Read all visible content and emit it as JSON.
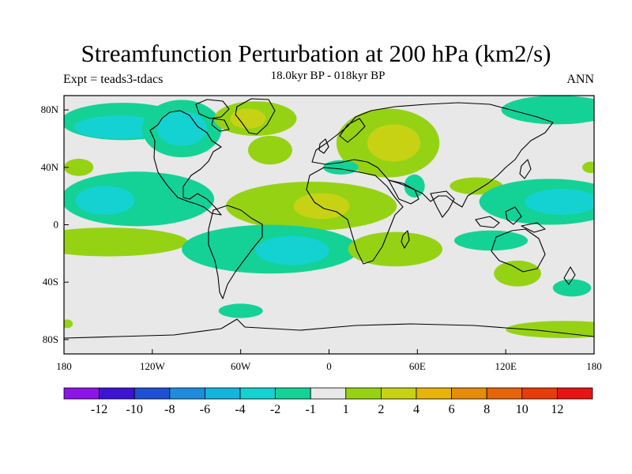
{
  "title": "Streamfunction Perturbation at 200 hPa (km2/s)",
  "experiment": "Expt = teads3-tdacs",
  "period": "18.0kyr BP - 018kyr BP",
  "season": "ANN",
  "map": {
    "projection": "cylindrical-equidistant",
    "lon_range": [
      -180,
      180
    ],
    "lat_range": [
      -90,
      90
    ],
    "x_ticks": [
      {
        "lon": -180,
        "label": "180"
      },
      {
        "lon": -120,
        "label": "120W"
      },
      {
        "lon": -60,
        "label": "60W"
      },
      {
        "lon": 0,
        "label": "0"
      },
      {
        "lon": 60,
        "label": "60E"
      },
      {
        "lon": 120,
        "label": "120E"
      },
      {
        "lon": 180,
        "label": "180"
      }
    ],
    "y_ticks": [
      {
        "lat": 80,
        "label": "80N"
      },
      {
        "lat": 40,
        "label": "40N"
      },
      {
        "lat": 0,
        "label": "0"
      },
      {
        "lat": -40,
        "label": "40S"
      },
      {
        "lat": -80,
        "label": "80S"
      }
    ],
    "background_color": "#e8e8e8"
  },
  "colorbar": {
    "colors": [
      "#8c14e6",
      "#3c14d2",
      "#1e50d2",
      "#1e8cdc",
      "#14b4dc",
      "#14d2d2",
      "#14d296",
      "#e8e8e8",
      "#96d214",
      "#c8d214",
      "#e6b40a",
      "#e68c0a",
      "#e6640a",
      "#e63c0a",
      "#e61414"
    ],
    "labels": [
      "-12",
      "-10",
      "-8",
      "-6",
      "-4",
      "-2",
      "-1",
      "1",
      "2",
      "4",
      "6",
      "8",
      "10",
      "12"
    ]
  },
  "regions": [
    {
      "lon": -140,
      "lat": 72,
      "rx": 42,
      "ry": 13,
      "level": "-1"
    },
    {
      "lon": -143,
      "lat": 68,
      "rx": 30,
      "ry": 8,
      "level": "-2"
    },
    {
      "lon": -100,
      "lat": 67,
      "rx": 27,
      "ry": 20,
      "level": "-1"
    },
    {
      "lon": -100,
      "lat": 67,
      "rx": 17,
      "ry": 12,
      "level": "-2"
    },
    {
      "lon": -130,
      "lat": 18,
      "rx": 52,
      "ry": 19,
      "level": "-1"
    },
    {
      "lon": -152,
      "lat": 17,
      "rx": 20,
      "ry": 10,
      "level": "-2"
    },
    {
      "lon": -170,
      "lat": 40,
      "rx": 10,
      "ry": 6,
      "level": "1"
    },
    {
      "lon": -150,
      "lat": -12,
      "rx": 54,
      "ry": 10,
      "level": "1"
    },
    {
      "lon": -50,
      "lat": 74,
      "rx": 28,
      "ry": 12,
      "level": "1"
    },
    {
      "lon": -55,
      "lat": 74,
      "rx": 12,
      "ry": 7,
      "level": "2"
    },
    {
      "lon": -40,
      "lat": 52,
      "rx": 15,
      "ry": 10,
      "level": "1"
    },
    {
      "lon": -12,
      "lat": 13,
      "rx": 58,
      "ry": 17,
      "level": "1"
    },
    {
      "lon": -5,
      "lat": 13,
      "rx": 19,
      "ry": 9,
      "level": "2"
    },
    {
      "lon": -40,
      "lat": -17,
      "rx": 60,
      "ry": 17,
      "level": "-1"
    },
    {
      "lon": -25,
      "lat": -18,
      "rx": 25,
      "ry": 10,
      "level": "-2"
    },
    {
      "lon": 45,
      "lat": -17,
      "rx": 32,
      "ry": 12,
      "level": "1"
    },
    {
      "lon": -60,
      "lat": -60,
      "rx": 15,
      "ry": 5,
      "level": "-1"
    },
    {
      "lon": 40,
      "lat": 57,
      "rx": 35,
      "ry": 24,
      "level": "1"
    },
    {
      "lon": 44,
      "lat": 57,
      "rx": 18,
      "ry": 13,
      "level": "2"
    },
    {
      "lon": 8,
      "lat": 40,
      "rx": 12,
      "ry": 5,
      "level": "-1"
    },
    {
      "lon": 58,
      "lat": 27,
      "rx": 7,
      "ry": 8,
      "level": "-1"
    },
    {
      "lon": 100,
      "lat": 27,
      "rx": 18,
      "ry": 6,
      "level": "1"
    },
    {
      "lon": 150,
      "lat": 16,
      "rx": 48,
      "ry": 16,
      "level": "-1"
    },
    {
      "lon": 158,
      "lat": 16,
      "rx": 25,
      "ry": 9,
      "level": "-2"
    },
    {
      "lon": 110,
      "lat": -11,
      "rx": 25,
      "ry": 7,
      "level": "-1"
    },
    {
      "lon": 128,
      "lat": -34,
      "rx": 16,
      "ry": 9,
      "level": "1"
    },
    {
      "lon": 165,
      "lat": -44,
      "rx": 13,
      "ry": 6,
      "level": "-1"
    },
    {
      "lon": 160,
      "lat": -73,
      "rx": 40,
      "ry": 6,
      "level": "1"
    },
    {
      "lon": -178,
      "lat": -69,
      "rx": 4,
      "ry": 3,
      "level": "1"
    },
    {
      "lon": 155,
      "lat": 80,
      "rx": 38,
      "ry": 10,
      "level": "-1"
    },
    {
      "lon": 178,
      "lat": 40,
      "rx": 6,
      "ry": 4,
      "level": "1"
    }
  ]
}
